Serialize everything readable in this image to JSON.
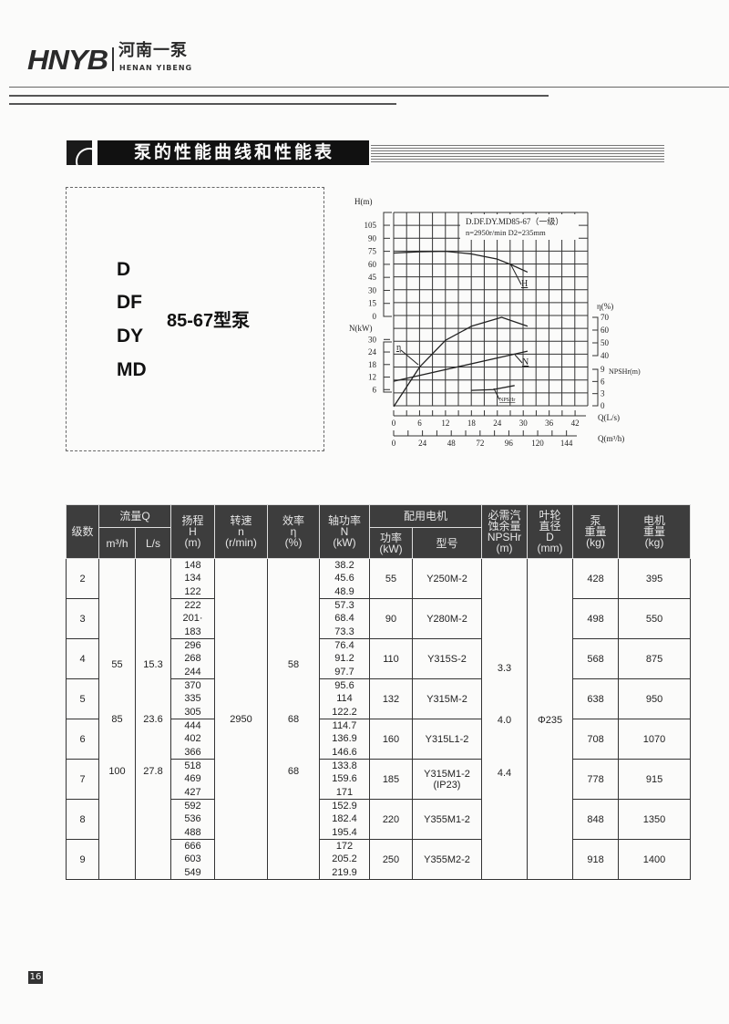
{
  "brand": {
    "mark": "HNYB",
    "cn": "河南一泵",
    "en": "HENAN YIBENG"
  },
  "section": {
    "title": "泵的性能曲线和性能表"
  },
  "models": {
    "lines": [
      "D",
      "DF",
      "DY",
      "MD"
    ],
    "name": "85-67型泵"
  },
  "chart_data": {
    "type": "line",
    "title": "D.DF.DY.MD85-67（一级）",
    "subtitle": "n=2950r/min   D2=235mm",
    "xlabel": "Q(L/s)",
    "x2label": "Q(m³/h)",
    "xlim": [
      0,
      42
    ],
    "x_ticks": [
      0,
      6,
      12,
      18,
      24,
      30,
      36,
      42
    ],
    "x2_ticks": [
      0,
      24,
      48,
      72,
      96,
      120,
      144
    ],
    "grid": true,
    "axes": {
      "H": {
        "label": "H(m)",
        "ticks": [
          0,
          15,
          30,
          45,
          60,
          75,
          90,
          105
        ]
      },
      "N": {
        "label": "N(kW)",
        "ticks": [
          6,
          12,
          18,
          24,
          30
        ]
      },
      "eta": {
        "label": "η(%)",
        "ticks": [
          40,
          50,
          60,
          70
        ]
      },
      "NPSHr": {
        "label": "NPSHr(m)",
        "ticks": [
          0,
          3,
          6,
          9
        ]
      }
    },
    "series": [
      {
        "name": "H",
        "axis": "H",
        "x": [
          0,
          6,
          12,
          18,
          24,
          27,
          31
        ],
        "y": [
          73,
          74.5,
          75,
          72,
          66,
          60,
          51
        ]
      },
      {
        "name": "N",
        "axis": "N",
        "x": [
          0,
          31
        ],
        "y": [
          10,
          24.4
        ]
      },
      {
        "name": "η",
        "axis": "eta",
        "x": [
          0,
          6,
          12,
          18,
          25,
          31
        ],
        "y": [
          0,
          31,
          52,
          63,
          70,
          63
        ]
      },
      {
        "name": "NPSHr",
        "axis": "NPSHr",
        "x": [
          18,
          23,
          28
        ],
        "y": [
          3.8,
          4.0,
          5.0
        ]
      }
    ]
  },
  "table": {
    "header": {
      "stage": "级数",
      "flow": "流量Q",
      "flow_m3h": "m³/h",
      "flow_ls": "L/s",
      "head": [
        "扬程",
        "H",
        "(m)"
      ],
      "speed": [
        "转速",
        "n",
        "(r/min)"
      ],
      "eff": [
        "效率",
        "η",
        "(%)"
      ],
      "shaft": [
        "轴功率",
        "N",
        "(kW)"
      ],
      "motor": "配用电机",
      "motor_kw": [
        "功率",
        "(kW)"
      ],
      "motor_model": "型号",
      "npsh": [
        "必需汽",
        "蚀余量",
        "NPSHr",
        "(m)"
      ],
      "impeller": [
        "叶轮",
        "直径",
        "D",
        "(mm)"
      ],
      "pump_wt": [
        "泵",
        "重量",
        "(kg)"
      ],
      "motor_wt": [
        "电机",
        "重量",
        "(kg)"
      ]
    },
    "flow_m3h": [
      "55",
      "85",
      "100"
    ],
    "flow_ls": [
      "15.3",
      "23.6",
      "27.8"
    ],
    "speed": "2950",
    "eff": [
      "58",
      "68",
      "68"
    ],
    "npsh": [
      "3.3",
      "4.0",
      "4.4"
    ],
    "impeller": "Φ235",
    "rows": [
      {
        "stage": "2",
        "H": [
          "148",
          "134",
          "122"
        ],
        "N": [
          "38.2",
          "45.6",
          "48.9"
        ],
        "motor_kw": "55",
        "motor_model": "Y250M-2",
        "pump_wt": "428",
        "motor_wt": "395"
      },
      {
        "stage": "3",
        "H": [
          "222",
          "201·",
          "183"
        ],
        "N": [
          "57.3",
          "68.4",
          "73.3"
        ],
        "motor_kw": "90",
        "motor_model": "Y280M-2",
        "pump_wt": "498",
        "motor_wt": "550"
      },
      {
        "stage": "4",
        "H": [
          "296",
          "268",
          "244"
        ],
        "N": [
          "76.4",
          "91.2",
          "97.7"
        ],
        "motor_kw": "110",
        "motor_model": "Y315S-2",
        "pump_wt": "568",
        "motor_wt": "875"
      },
      {
        "stage": "5",
        "H": [
          "370",
          "335",
          "305"
        ],
        "N": [
          "95.6",
          "114",
          "122.2"
        ],
        "motor_kw": "132",
        "motor_model": "Y315M-2",
        "pump_wt": "638",
        "motor_wt": "950"
      },
      {
        "stage": "6",
        "H": [
          "444",
          "402",
          "366"
        ],
        "N": [
          "114.7",
          "136.9",
          "146.6"
        ],
        "motor_kw": "160",
        "motor_model": "Y315L1-2",
        "pump_wt": "708",
        "motor_wt": "1070"
      },
      {
        "stage": "7",
        "H": [
          "518",
          "469",
          "427"
        ],
        "N": [
          "133.8",
          "159.6",
          "171"
        ],
        "motor_kw": "185",
        "motor_model": "Y315M1-2\n(IP23)",
        "pump_wt": "778",
        "motor_wt": "915"
      },
      {
        "stage": "8",
        "H": [
          "592",
          "536",
          "488"
        ],
        "N": [
          "152.9",
          "182.4",
          "195.4"
        ],
        "motor_kw": "220",
        "motor_model": "Y355M1-2",
        "pump_wt": "848",
        "motor_wt": "1350"
      },
      {
        "stage": "9",
        "H": [
          "666",
          "603",
          "549"
        ],
        "N": [
          "172",
          "205.2",
          "219.9"
        ],
        "motor_kw": "250",
        "motor_model": "Y355M2-2",
        "pump_wt": "918",
        "motor_wt": "1400"
      }
    ]
  },
  "page_number": "16"
}
